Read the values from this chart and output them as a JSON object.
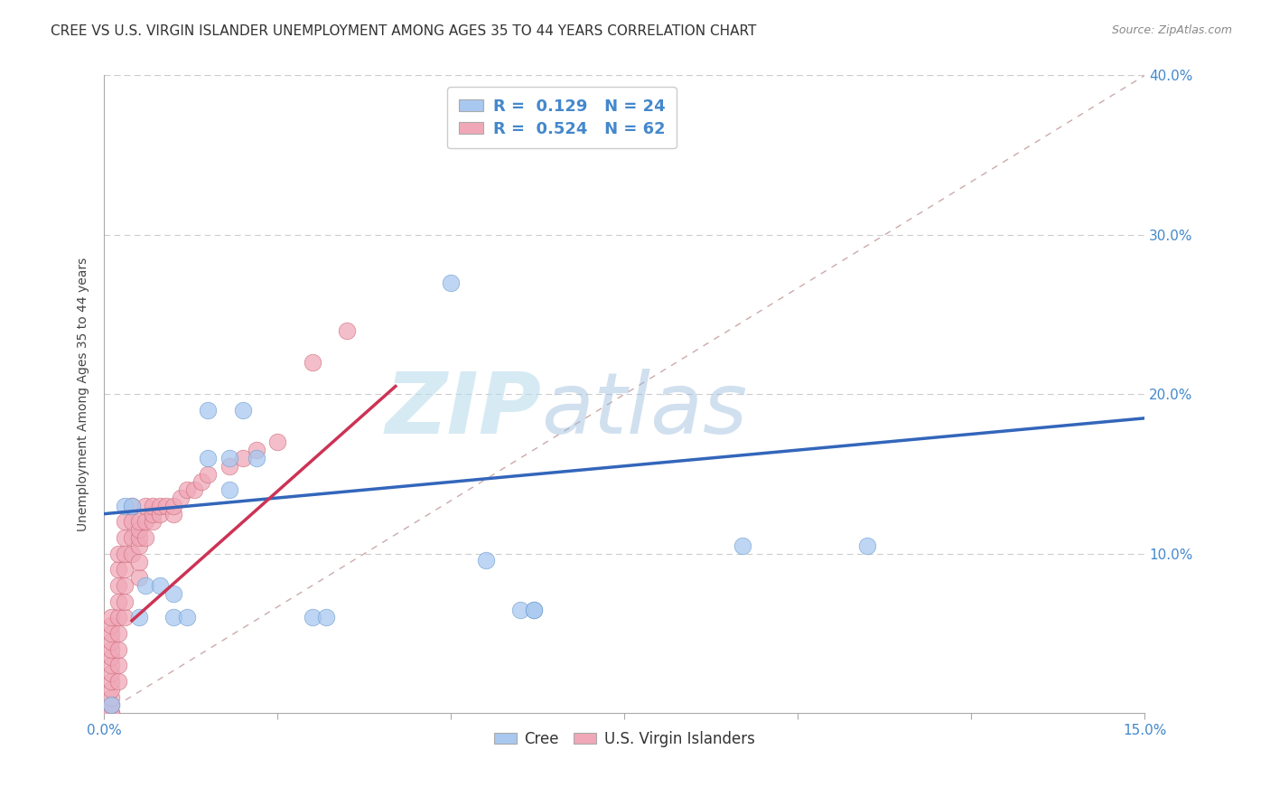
{
  "title": "CREE VS U.S. VIRGIN ISLANDER UNEMPLOYMENT AMONG AGES 35 TO 44 YEARS CORRELATION CHART",
  "source": "Source: ZipAtlas.com",
  "ylabel": "Unemployment Among Ages 35 to 44 years",
  "xlim": [
    0.0,
    0.15
  ],
  "ylim": [
    0.0,
    0.4
  ],
  "xticks": [
    0.0,
    0.025,
    0.05,
    0.075,
    0.1,
    0.125,
    0.15
  ],
  "yticks": [
    0.0,
    0.1,
    0.2,
    0.3,
    0.4
  ],
  "xtick_labels": [
    "0.0%",
    "",
    "",
    "",
    "",
    "",
    "15.0%"
  ],
  "ytick_labels_right": [
    "",
    "10.0%",
    "20.0%",
    "30.0%",
    "40.0%"
  ],
  "cree_color": "#a8c8f0",
  "virgin_color": "#f0a8b8",
  "cree_edge_color": "#6699cc",
  "virgin_edge_color": "#cc6677",
  "cree_R": 0.129,
  "cree_N": 24,
  "virgin_R": 0.524,
  "virgin_N": 62,
  "watermark_zip": "ZIP",
  "watermark_atlas": "atlas",
  "cree_trend_x": [
    0.0,
    0.15
  ],
  "cree_trend_y": [
    0.125,
    0.185
  ],
  "virgin_trend_x": [
    0.004,
    0.042
  ],
  "virgin_trend_y": [
    0.058,
    0.205
  ],
  "ref_line_x": [
    0.0,
    0.15
  ],
  "ref_line_y": [
    0.0,
    0.4
  ],
  "cree_points_x": [
    0.001,
    0.003,
    0.004,
    0.005,
    0.006,
    0.008,
    0.01,
    0.01,
    0.012,
    0.015,
    0.015,
    0.018,
    0.018,
    0.02,
    0.022,
    0.03,
    0.032,
    0.05,
    0.055,
    0.06,
    0.062,
    0.062,
    0.092,
    0.11
  ],
  "cree_points_y": [
    0.005,
    0.13,
    0.13,
    0.06,
    0.08,
    0.08,
    0.06,
    0.075,
    0.06,
    0.19,
    0.16,
    0.16,
    0.14,
    0.19,
    0.16,
    0.06,
    0.06,
    0.27,
    0.096,
    0.065,
    0.065,
    0.065,
    0.105,
    0.105
  ],
  "virgin_points_x": [
    0.001,
    0.001,
    0.001,
    0.001,
    0.001,
    0.001,
    0.001,
    0.001,
    0.001,
    0.001,
    0.001,
    0.001,
    0.001,
    0.001,
    0.002,
    0.002,
    0.002,
    0.002,
    0.002,
    0.002,
    0.002,
    0.002,
    0.002,
    0.003,
    0.003,
    0.003,
    0.003,
    0.003,
    0.003,
    0.003,
    0.004,
    0.004,
    0.004,
    0.004,
    0.005,
    0.005,
    0.005,
    0.005,
    0.005,
    0.005,
    0.006,
    0.006,
    0.006,
    0.007,
    0.007,
    0.007,
    0.008,
    0.008,
    0.009,
    0.01,
    0.01,
    0.011,
    0.012,
    0.013,
    0.014,
    0.015,
    0.018,
    0.02,
    0.022,
    0.025,
    0.03,
    0.035
  ],
  "virgin_points_y": [
    0.0,
    0.0,
    0.005,
    0.01,
    0.015,
    0.02,
    0.025,
    0.03,
    0.035,
    0.04,
    0.045,
    0.05,
    0.055,
    0.06,
    0.02,
    0.03,
    0.04,
    0.05,
    0.06,
    0.07,
    0.08,
    0.09,
    0.1,
    0.06,
    0.07,
    0.08,
    0.09,
    0.1,
    0.11,
    0.12,
    0.1,
    0.11,
    0.12,
    0.13,
    0.085,
    0.095,
    0.105,
    0.11,
    0.115,
    0.12,
    0.11,
    0.12,
    0.13,
    0.12,
    0.125,
    0.13,
    0.125,
    0.13,
    0.13,
    0.125,
    0.13,
    0.135,
    0.14,
    0.14,
    0.145,
    0.15,
    0.155,
    0.16,
    0.165,
    0.17,
    0.22,
    0.24
  ],
  "background_color": "#ffffff",
  "grid_color": "#cccccc",
  "title_fontsize": 11,
  "label_fontsize": 10,
  "tick_fontsize": 11,
  "legend_fontsize": 13
}
